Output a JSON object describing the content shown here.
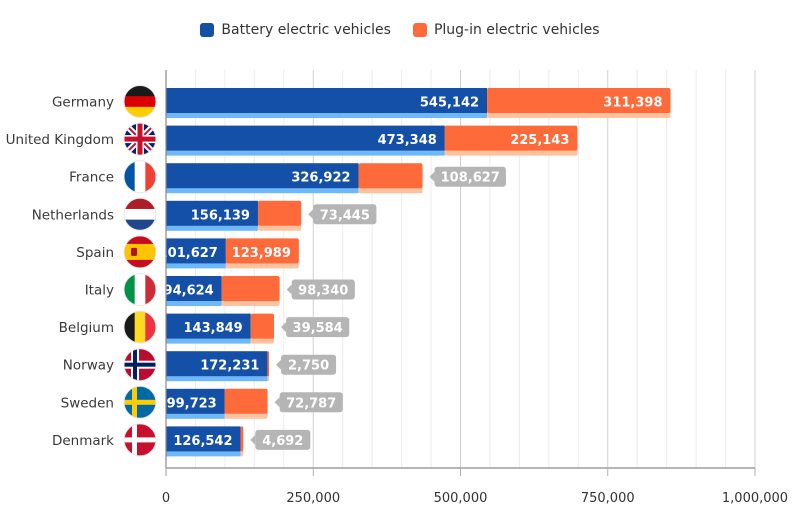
{
  "chart_data": {
    "type": "bar",
    "orientation": "horizontal",
    "stacked": true,
    "title": "",
    "xlabel": "",
    "ylabel": "",
    "xlim": [
      0,
      1000000
    ],
    "x_ticks": [
      "0",
      "250,000",
      "500,000",
      "750,000",
      "1,000,000"
    ],
    "x_tick_values": [
      0,
      250000,
      500000,
      750000,
      1000000
    ],
    "grid": true,
    "legend_position": "top-center",
    "categories": [
      "Germany",
      "United Kingdom",
      "France",
      "Netherlands",
      "Spain",
      "Italy",
      "Belgium",
      "Norway",
      "Sweden",
      "Denmark"
    ],
    "flags": [
      "flag-germany",
      "flag-united-kingdom",
      "flag-france",
      "flag-netherlands",
      "flag-spain",
      "flag-italy",
      "flag-belgium",
      "flag-norway",
      "flag-sweden",
      "flag-denmark"
    ],
    "series": [
      {
        "name": "Battery electric vehicles",
        "color": "#1450a8",
        "shadow_color": "#6fb8f7",
        "values": [
          545142,
          473348,
          326922,
          156139,
          101627,
          94624,
          143849,
          172231,
          99723,
          126542
        ],
        "labels": [
          "545,142",
          "473,348",
          "326,922",
          "156,139",
          "101,627",
          "94,624",
          "143,849",
          "172,231",
          "99,723",
          "126,542"
        ]
      },
      {
        "name": "Plug-in electric vehicles",
        "color": "#ff6a3a",
        "shadow_color": "#ffc29e",
        "values": [
          311398,
          225143,
          108627,
          73445,
          123989,
          98340,
          39584,
          2750,
          72787,
          4692
        ],
        "labels": [
          "311,398",
          "225,143",
          "108,627",
          "73,445",
          "123,989",
          "98,340",
          "39,584",
          "2,750",
          "72,787",
          "4,692"
        ]
      }
    ],
    "callout_color": "#b5b5b5"
  },
  "legend": {
    "items": [
      "Battery electric vehicles",
      "Plug-in electric vehicles"
    ]
  }
}
